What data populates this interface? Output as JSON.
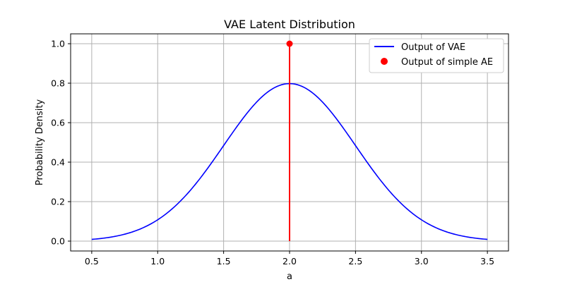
{
  "chart_data": {
    "type": "line",
    "title": "VAE Latent Distribution",
    "xlabel": "a",
    "ylabel": "Probability Density",
    "xlim": [
      0.34,
      3.66
    ],
    "ylim": [
      -0.05,
      1.05
    ],
    "xticks": [
      0.5,
      1.0,
      1.5,
      2.0,
      2.5,
      3.0,
      3.5
    ],
    "xtick_labels": [
      "0.5",
      "1.0",
      "1.5",
      "2.0",
      "2.5",
      "3.0",
      "3.5"
    ],
    "yticks": [
      0.0,
      0.2,
      0.4,
      0.6,
      0.8,
      1.0
    ],
    "ytick_labels": [
      "0.0",
      "0.2",
      "0.4",
      "0.6",
      "0.8",
      "1.0"
    ],
    "grid": true,
    "legend_position": "top-right",
    "series": [
      {
        "name": "Output of VAE",
        "kind": "line",
        "color": "#0000ff",
        "distribution": "normal",
        "mean": 2.0,
        "std": 0.5,
        "x_range": [
          0.5,
          3.5
        ],
        "peak": 0.798
      },
      {
        "name": "Output of simple AE",
        "kind": "point-with-stem",
        "color": "#ff0000",
        "x": 2.0,
        "y": 1.0,
        "stem_from": 0.0
      }
    ]
  }
}
